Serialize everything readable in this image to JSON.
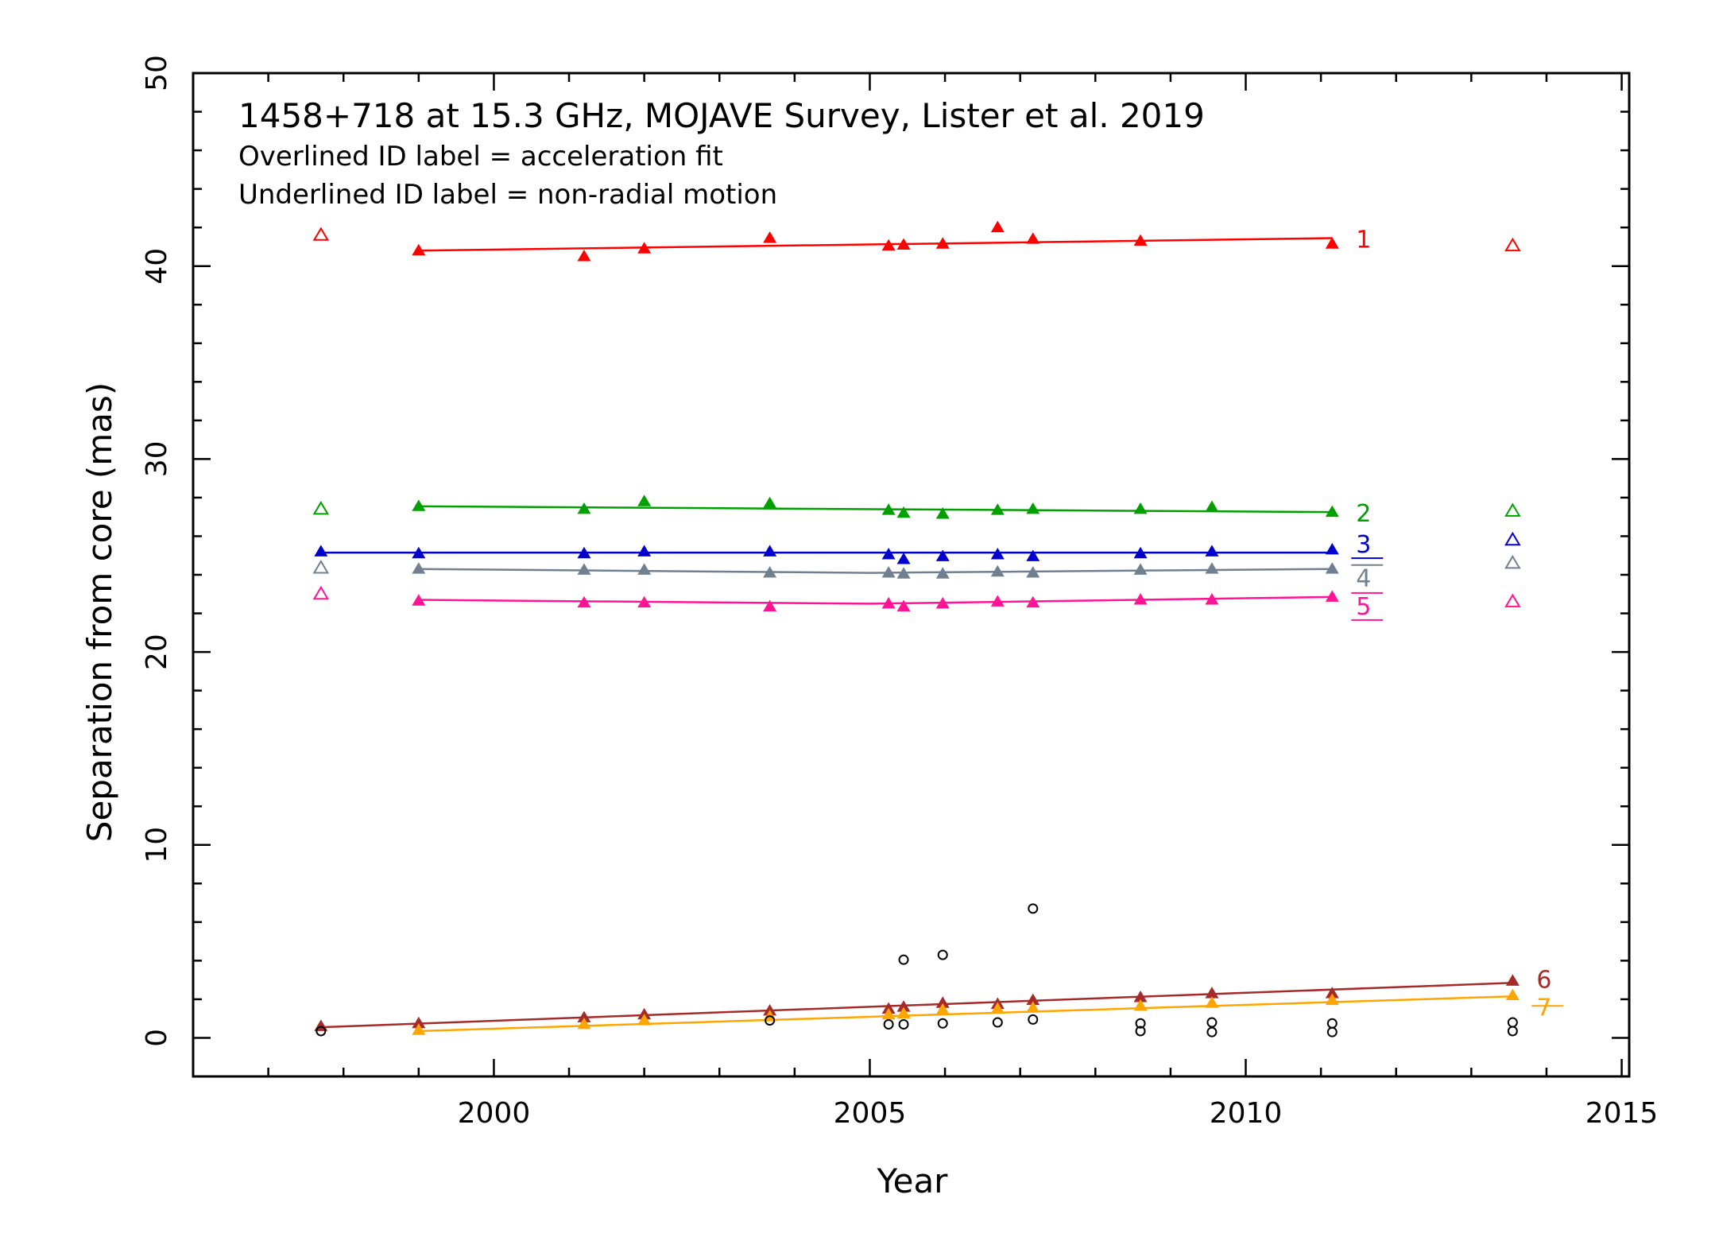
{
  "chart_data": {
    "type": "scatter",
    "title": "1458+718 at 15.3 GHz, MOJAVE Survey, Lister et al. 2019",
    "subtitle_lines": [
      "Overlined ID label = acceleration fit",
      "Underlined ID label = non-radial motion"
    ],
    "xlabel": "Year",
    "ylabel": "Separation from core (mas)",
    "xlim": [
      1996.0,
      2015.1
    ],
    "ylim": [
      -2.0,
      50.0
    ],
    "x_ticks": [
      2000,
      2005,
      2010,
      2015
    ],
    "y_ticks": [
      0,
      10,
      20,
      30,
      40,
      50
    ],
    "x_ticks_minor_step": 1,
    "y_ticks_minor_step": 2,
    "grid": false,
    "series": [
      {
        "name": "1",
        "color": "#ff0000",
        "label_mark": "none",
        "fit": [
          [
            1999.0,
            40.8
          ],
          [
            2011.15,
            41.45
          ]
        ],
        "points": [
          [
            1999.0,
            40.8
          ],
          [
            2001.2,
            40.5
          ],
          [
            2002.0,
            40.9
          ],
          [
            2003.67,
            41.45
          ],
          [
            2005.25,
            41.05
          ],
          [
            2005.45,
            41.1
          ],
          [
            2005.97,
            41.15
          ],
          [
            2006.7,
            42.0
          ],
          [
            2007.17,
            41.4
          ],
          [
            2008.6,
            41.3
          ],
          [
            2011.15,
            41.15
          ]
        ],
        "open_points": [
          [
            1997.7,
            41.6
          ],
          [
            2013.55,
            41.05
          ]
        ]
      },
      {
        "name": "2",
        "color": "#00a000",
        "label_mark": "none",
        "fit": [
          [
            1999.0,
            27.55
          ],
          [
            2011.15,
            27.25
          ]
        ],
        "points": [
          [
            1999.0,
            27.55
          ],
          [
            2001.2,
            27.4
          ],
          [
            2002.0,
            27.8
          ],
          [
            2003.67,
            27.7
          ],
          [
            2005.25,
            27.35
          ],
          [
            2005.45,
            27.2
          ],
          [
            2005.97,
            27.15
          ],
          [
            2006.7,
            27.35
          ],
          [
            2007.17,
            27.4
          ],
          [
            2008.6,
            27.4
          ],
          [
            2009.55,
            27.5
          ],
          [
            2011.15,
            27.25
          ]
        ],
        "open_points": [
          [
            1997.7,
            27.4
          ],
          [
            2013.55,
            27.3
          ]
        ]
      },
      {
        "name": "3",
        "color": "#0000cc",
        "label_mark": "underline",
        "fit": [
          [
            1997.7,
            25.15
          ],
          [
            2011.15,
            25.15
          ]
        ],
        "points": [
          [
            1997.7,
            25.2
          ],
          [
            1999.0,
            25.1
          ],
          [
            2001.2,
            25.1
          ],
          [
            2002.0,
            25.2
          ],
          [
            2003.67,
            25.2
          ],
          [
            2005.25,
            25.05
          ],
          [
            2005.45,
            24.8
          ],
          [
            2005.97,
            24.95
          ],
          [
            2006.7,
            25.05
          ],
          [
            2007.17,
            24.95
          ],
          [
            2008.6,
            25.1
          ],
          [
            2009.55,
            25.2
          ],
          [
            2011.15,
            25.3
          ]
        ],
        "open_points": [
          [
            2013.55,
            25.8
          ]
        ]
      },
      {
        "name": "4",
        "color": "#708090",
        "label_mark": "overline",
        "fit": [
          [
            1999.0,
            24.3
          ],
          [
            2005.0,
            24.1
          ],
          [
            2011.15,
            24.3
          ]
        ],
        "points": [
          [
            1999.0,
            24.3
          ],
          [
            2001.2,
            24.25
          ],
          [
            2002.0,
            24.25
          ],
          [
            2003.67,
            24.1
          ],
          [
            2005.25,
            24.1
          ],
          [
            2005.45,
            24.05
          ],
          [
            2005.97,
            24.05
          ],
          [
            2006.7,
            24.15
          ],
          [
            2007.17,
            24.1
          ],
          [
            2008.6,
            24.25
          ],
          [
            2009.55,
            24.3
          ],
          [
            2011.15,
            24.3
          ]
        ],
        "open_points": [
          [
            1997.7,
            24.35
          ],
          [
            2013.55,
            24.6
          ]
        ]
      },
      {
        "name": "5",
        "color": "#ff1493",
        "label_mark": "both",
        "fit": [
          [
            1999.0,
            22.7
          ],
          [
            2005.0,
            22.5
          ],
          [
            2011.15,
            22.85
          ]
        ],
        "points": [
          [
            1999.0,
            22.65
          ],
          [
            2001.2,
            22.55
          ],
          [
            2002.0,
            22.55
          ],
          [
            2003.67,
            22.35
          ],
          [
            2005.25,
            22.5
          ],
          [
            2005.45,
            22.35
          ],
          [
            2005.97,
            22.5
          ],
          [
            2006.7,
            22.6
          ],
          [
            2007.17,
            22.55
          ],
          [
            2008.6,
            22.7
          ],
          [
            2009.55,
            22.7
          ],
          [
            2011.15,
            22.85
          ]
        ],
        "open_points": [
          [
            1997.7,
            23.0
          ],
          [
            2013.55,
            22.6
          ]
        ]
      },
      {
        "name": "6",
        "color": "#a52a2a",
        "label_mark": "none",
        "fit": [
          [
            1997.7,
            0.55
          ],
          [
            2013.55,
            2.85
          ]
        ],
        "points": [
          [
            1997.7,
            0.6
          ],
          [
            1999.0,
            0.75
          ],
          [
            2001.2,
            1.05
          ],
          [
            2002.0,
            1.2
          ],
          [
            2003.67,
            1.4
          ],
          [
            2005.25,
            1.5
          ],
          [
            2005.45,
            1.6
          ],
          [
            2005.97,
            1.8
          ],
          [
            2006.7,
            1.75
          ],
          [
            2007.17,
            1.95
          ],
          [
            2008.6,
            2.1
          ],
          [
            2009.55,
            2.3
          ],
          [
            2011.15,
            2.3
          ],
          [
            2013.55,
            2.95
          ]
        ],
        "open_points": []
      },
      {
        "name": "7",
        "color": "#ffa500",
        "label_mark": "strike",
        "fit": [
          [
            1999.0,
            0.35
          ],
          [
            2013.55,
            2.15
          ]
        ],
        "points": [
          [
            1999.0,
            0.4
          ],
          [
            2001.2,
            0.7
          ],
          [
            2002.0,
            0.9
          ],
          [
            2003.67,
            1.1
          ],
          [
            2005.25,
            1.2
          ],
          [
            2005.45,
            1.25
          ],
          [
            2005.97,
            1.45
          ],
          [
            2006.7,
            1.5
          ],
          [
            2007.17,
            1.55
          ],
          [
            2008.6,
            1.65
          ],
          [
            2009.55,
            1.8
          ],
          [
            2011.15,
            1.95
          ],
          [
            2013.55,
            2.2
          ]
        ],
        "open_points": []
      }
    ],
    "other_components": {
      "color": "#000000",
      "marker": "open-circle",
      "points": [
        [
          1997.7,
          0.35
        ],
        [
          2003.67,
          0.9
        ],
        [
          2005.25,
          0.7
        ],
        [
          2005.45,
          0.7
        ],
        [
          2005.45,
          4.05
        ],
        [
          2005.97,
          0.75
        ],
        [
          2005.97,
          4.3
        ],
        [
          2006.7,
          0.8
        ],
        [
          2007.17,
          0.95
        ],
        [
          2007.17,
          6.7
        ],
        [
          2008.6,
          0.35
        ],
        [
          2008.6,
          0.75
        ],
        [
          2009.55,
          0.3
        ],
        [
          2009.55,
          0.8
        ],
        [
          2011.15,
          0.3
        ],
        [
          2011.15,
          0.75
        ],
        [
          2013.55,
          0.35
        ],
        [
          2013.55,
          0.8
        ]
      ]
    }
  }
}
